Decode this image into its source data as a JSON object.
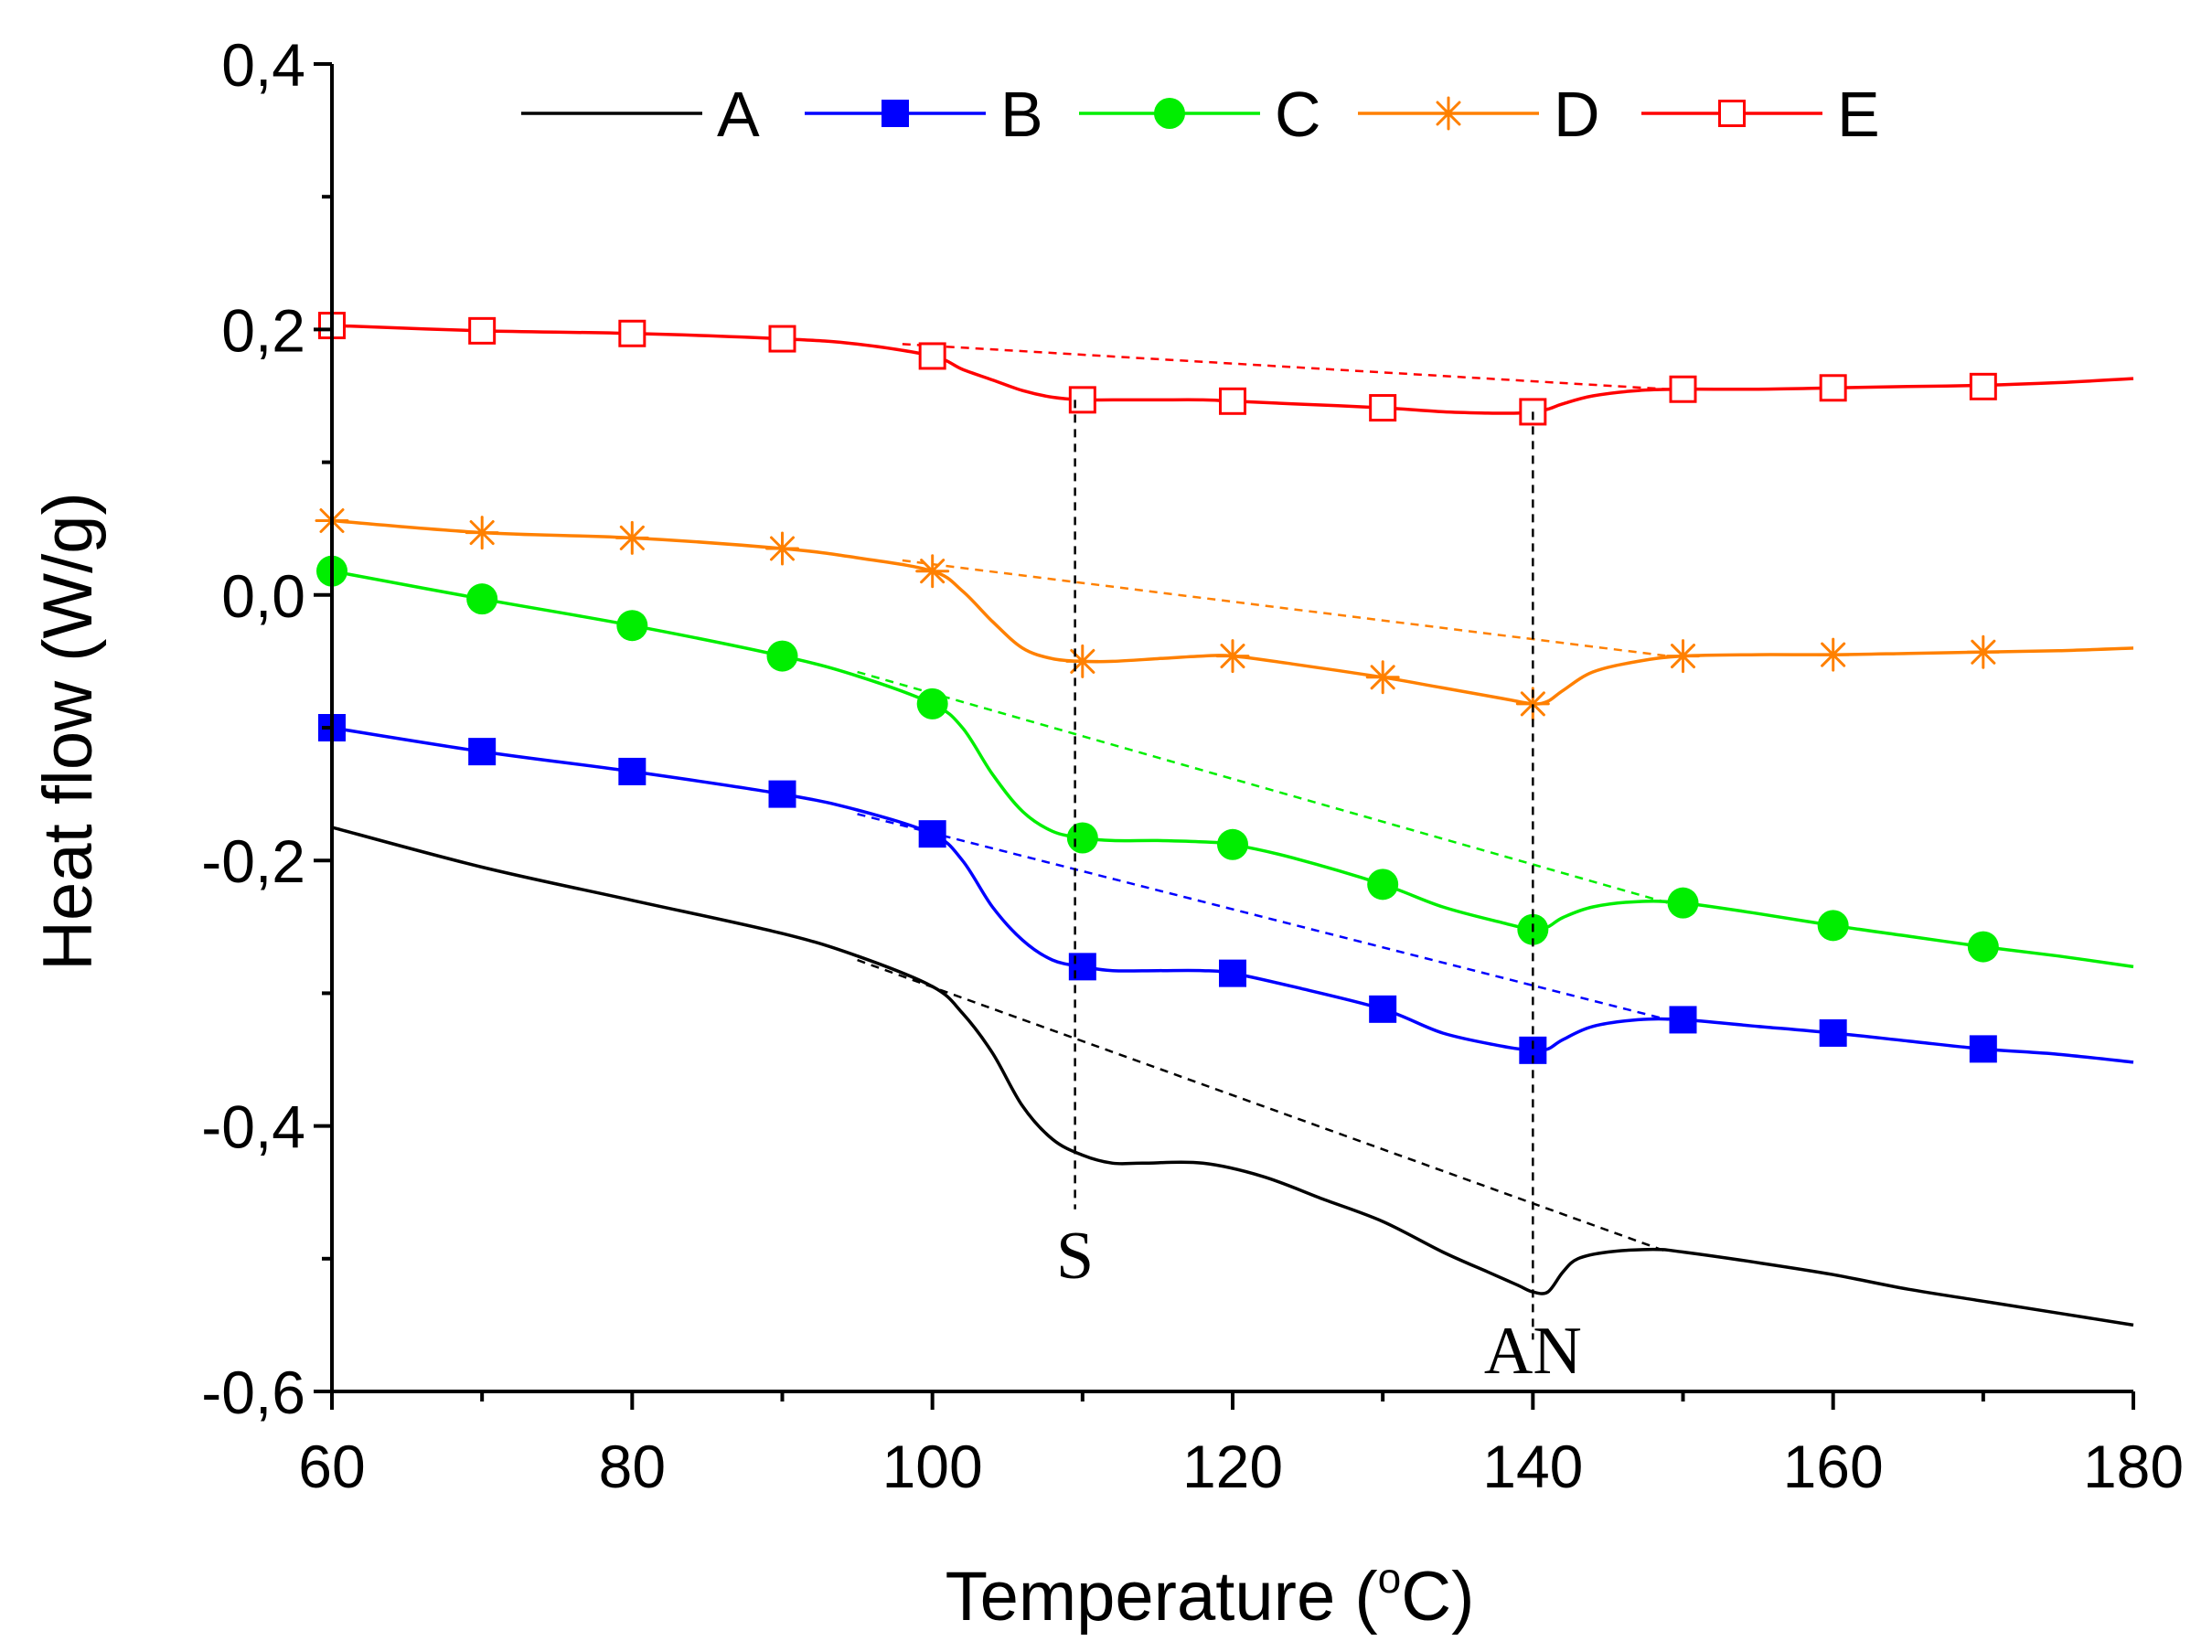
{
  "chart_data": {
    "type": "line",
    "title": "",
    "xlabel": "Temperature (",
    "xlabel_sup": "o",
    "xlabel_end": "C)",
    "ylabel": "Heat flow (W/g)",
    "xlim": [
      60,
      180
    ],
    "ylim": [
      -0.6,
      0.4
    ],
    "x_ticks": [
      60,
      80,
      100,
      120,
      140,
      160,
      180
    ],
    "x_tick_labels": [
      "60",
      "80",
      "100",
      "120",
      "140",
      "160",
      "180"
    ],
    "y_ticks": [
      -0.6,
      -0.4,
      -0.2,
      0.0,
      0.2,
      0.4
    ],
    "y_tick_labels": [
      "-0,6",
      "-0,4",
      "-0,2",
      "0,0",
      "0,2",
      "0,4"
    ],
    "legend_position": "top",
    "series": [
      {
        "name": "A",
        "color": "#000000",
        "marker": "none",
        "x": [
          60,
          70,
          80,
          90,
          95,
          100,
          102,
          104,
          106,
          108,
          110,
          112,
          114,
          118,
          122,
          126,
          130,
          134,
          137,
          139,
          140,
          141,
          142,
          143,
          145,
          148,
          150,
          155,
          160,
          165,
          170,
          175,
          180
        ],
        "y": [
          -0.175,
          -0.205,
          -0.23,
          -0.255,
          -0.272,
          -0.295,
          -0.315,
          -0.345,
          -0.385,
          -0.41,
          -0.422,
          -0.428,
          -0.428,
          -0.428,
          -0.438,
          -0.455,
          -0.472,
          -0.495,
          -0.51,
          -0.52,
          -0.525,
          -0.525,
          -0.51,
          -0.5,
          -0.495,
          -0.493,
          -0.495,
          -0.503,
          -0.512,
          -0.523,
          -0.532,
          -0.541,
          -0.55
        ],
        "marker_x": [],
        "marker_y": []
      },
      {
        "name": "B",
        "color": "#0000ff",
        "marker": "filled-square",
        "x": [
          60,
          70,
          80,
          90,
          95,
          100,
          102,
          104,
          106,
          108,
          110,
          112,
          115,
          118,
          120,
          124,
          130,
          134,
          138,
          140,
          141,
          142,
          144,
          147,
          150,
          155,
          160,
          165,
          170,
          175,
          180
        ],
        "y": [
          -0.1,
          -0.118,
          -0.133,
          -0.15,
          -0.162,
          -0.18,
          -0.2,
          -0.235,
          -0.26,
          -0.275,
          -0.28,
          -0.283,
          -0.283,
          -0.283,
          -0.285,
          -0.295,
          -0.312,
          -0.33,
          -0.34,
          -0.343,
          -0.342,
          -0.335,
          -0.325,
          -0.32,
          -0.32,
          -0.325,
          -0.33,
          -0.336,
          -0.342,
          -0.346,
          -0.352
        ],
        "marker_x": [
          60,
          70,
          80,
          90,
          100,
          110,
          120,
          130,
          140,
          150,
          160,
          170
        ],
        "marker_y": [
          -0.1,
          -0.118,
          -0.133,
          -0.15,
          -0.18,
          -0.28,
          -0.285,
          -0.312,
          -0.343,
          -0.32,
          -0.33,
          -0.342
        ]
      },
      {
        "name": "C",
        "color": "#00ee00",
        "marker": "filled-circle",
        "x": [
          60,
          70,
          80,
          90,
          95,
          100,
          102,
          104,
          106,
          108,
          110,
          112,
          115,
          118,
          120,
          124,
          130,
          134,
          138,
          140,
          141,
          142,
          144,
          147,
          150,
          155,
          160,
          165,
          170,
          175,
          180
        ],
        "y": [
          0.018,
          -0.003,
          -0.023,
          -0.046,
          -0.061,
          -0.082,
          -0.1,
          -0.135,
          -0.163,
          -0.178,
          -0.183,
          -0.185,
          -0.185,
          -0.186,
          -0.188,
          -0.198,
          -0.218,
          -0.235,
          -0.247,
          -0.252,
          -0.25,
          -0.243,
          -0.235,
          -0.231,
          -0.232,
          -0.24,
          -0.249,
          -0.257,
          -0.265,
          -0.272,
          -0.28
        ],
        "marker_x": [
          60,
          70,
          80,
          90,
          100,
          110,
          120,
          130,
          140,
          150,
          160,
          170
        ],
        "marker_y": [
          0.018,
          -0.003,
          -0.023,
          -0.046,
          -0.082,
          -0.183,
          -0.188,
          -0.218,
          -0.252,
          -0.232,
          -0.249,
          -0.265
        ]
      },
      {
        "name": "D",
        "color": "#ff8000",
        "marker": "asterisk",
        "x": [
          60,
          70,
          80,
          90,
          95,
          100,
          102,
          104,
          106,
          108,
          110,
          112,
          115,
          118,
          120,
          124,
          130,
          134,
          138,
          140,
          141,
          142,
          144,
          147,
          150,
          155,
          160,
          165,
          170,
          175,
          180
        ],
        "y": [
          0.056,
          0.047,
          0.043,
          0.035,
          0.028,
          0.018,
          0.003,
          -0.02,
          -0.04,
          -0.048,
          -0.05,
          -0.05,
          -0.048,
          -0.046,
          -0.046,
          -0.052,
          -0.062,
          -0.07,
          -0.078,
          -0.082,
          -0.08,
          -0.072,
          -0.058,
          -0.05,
          -0.046,
          -0.045,
          -0.045,
          -0.044,
          -0.043,
          -0.042,
          -0.04
        ],
        "marker_x": [
          60,
          70,
          80,
          90,
          100,
          110,
          120,
          130,
          140,
          150,
          160,
          170
        ],
        "marker_y": [
          0.056,
          0.047,
          0.043,
          0.035,
          0.018,
          -0.05,
          -0.046,
          -0.062,
          -0.082,
          -0.046,
          -0.045,
          -0.043
        ]
      },
      {
        "name": "E",
        "color": "#ff0000",
        "marker": "open-square",
        "x": [
          60,
          70,
          80,
          90,
          95,
          100,
          102,
          104,
          106,
          108,
          110,
          112,
          115,
          118,
          120,
          124,
          130,
          134,
          137,
          139,
          140,
          141,
          142,
          144,
          147,
          150,
          155,
          160,
          165,
          170,
          175,
          180
        ],
        "y": [
          0.203,
          0.199,
          0.197,
          0.193,
          0.189,
          0.18,
          0.17,
          0.162,
          0.154,
          0.149,
          0.147,
          0.147,
          0.147,
          0.147,
          0.146,
          0.144,
          0.141,
          0.138,
          0.137,
          0.137,
          0.138,
          0.14,
          0.144,
          0.15,
          0.154,
          0.155,
          0.155,
          0.156,
          0.157,
          0.158,
          0.16,
          0.163
        ],
        "marker_x": [
          60,
          70,
          80,
          90,
          100,
          110,
          120,
          130,
          140,
          150,
          160,
          170
        ],
        "marker_y": [
          0.203,
          0.199,
          0.197,
          0.193,
          0.18,
          0.147,
          0.146,
          0.141,
          0.138,
          0.155,
          0.156,
          0.157
        ]
      }
    ],
    "baselines": [
      {
        "series": "A",
        "color": "#000000",
        "x": [
          95,
          149
        ],
        "y": [
          -0.275,
          -0.495
        ]
      },
      {
        "series": "B",
        "color": "#0000ff",
        "x": [
          95,
          149
        ],
        "y": [
          -0.165,
          -0.32
        ]
      },
      {
        "series": "C",
        "color": "#00ee00",
        "x": [
          95,
          149
        ],
        "y": [
          -0.058,
          -0.232
        ]
      },
      {
        "series": "D",
        "color": "#ff8000",
        "x": [
          98,
          149
        ],
        "y": [
          0.026,
          -0.046
        ]
      },
      {
        "series": "E",
        "color": "#ff0000",
        "x": [
          98,
          149
        ],
        "y": [
          0.189,
          0.155
        ]
      }
    ],
    "annotations": [
      {
        "label": "S",
        "x": 109.5,
        "y_top": 0.147,
        "y_bottom": -0.48
      },
      {
        "label": "AN",
        "x": 140,
        "y_top": 0.138,
        "y_bottom": -0.53
      }
    ]
  }
}
